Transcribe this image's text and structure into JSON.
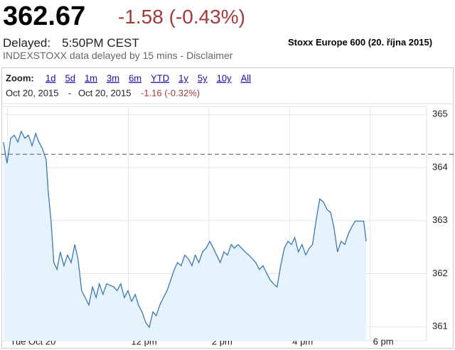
{
  "header": {
    "price": "362.67",
    "change": "-1.58 (-0.43%)",
    "delayed_label": "Delayed:",
    "delayed_time": "5:50PM CEST",
    "note": "INDEXSTOXX data delayed by 15 mins - Disclaimer",
    "caption": "Stoxx Europe 600 (20. října 2015)"
  },
  "zoom": {
    "label": "Zoom:",
    "options": [
      "1d",
      "5d",
      "1m",
      "3m",
      "6m",
      "YTD",
      "1y",
      "5y",
      "10y",
      "All"
    ]
  },
  "range": {
    "from": "Oct 20, 2015",
    "separator": "-",
    "to": "Oct 20, 2015",
    "change": "-1.16 (-0.32%)"
  },
  "chart_data": {
    "type": "area",
    "color": "#3a78b5",
    "fill": "#e6f3fc",
    "grid": true,
    "reference_line": 364.25,
    "x": [
      8.9,
      8.99,
      9.08,
      9.17,
      9.26,
      9.34,
      9.43,
      9.52,
      9.61,
      9.7,
      9.78,
      9.87,
      9.96,
      10.01,
      10.08,
      10.15,
      10.23,
      10.31,
      10.4,
      10.49,
      10.58,
      10.67,
      10.75,
      10.84,
      10.93,
      11.02,
      11.11,
      11.2,
      11.28,
      11.37,
      11.46,
      11.64,
      11.72,
      11.81,
      11.9,
      11.99,
      12.08,
      12.17,
      12.25,
      12.34,
      12.43,
      12.52,
      12.61,
      12.69,
      12.78,
      12.87,
      12.96,
      13.05,
      13.14,
      13.22,
      13.31,
      13.4,
      13.49,
      13.58,
      13.66,
      13.75,
      13.84,
      13.93,
      14.02,
      14.11,
      14.19,
      14.28,
      14.37,
      14.46,
      14.55,
      14.63,
      14.72,
      14.81,
      14.9,
      14.99,
      15.08,
      15.16,
      15.25,
      15.34,
      15.43,
      15.52,
      15.6,
      15.69,
      15.78,
      15.87,
      15.96,
      16.05,
      16.13,
      16.22,
      16.31,
      16.4,
      16.49,
      16.57,
      16.66,
      16.75,
      16.84,
      16.93,
      17.02,
      17.1,
      17.19,
      17.28,
      17.37,
      17.46,
      17.54,
      17.63,
      17.84,
      17.9
    ],
    "values": [
      364.48,
      364.08,
      364.55,
      364.61,
      364.48,
      364.68,
      364.55,
      364.61,
      364.41,
      364.64,
      364.48,
      364.35,
      364.15,
      363.55,
      363.01,
      362.21,
      362.08,
      362.41,
      362.15,
      362.35,
      362.21,
      362.55,
      362.28,
      361.68,
      361.55,
      361.41,
      361.75,
      361.55,
      361.81,
      361.61,
      361.81,
      361.75,
      361.68,
      361.81,
      361.55,
      361.68,
      361.48,
      361.61,
      361.41,
      361.28,
      361.08,
      360.99,
      361.28,
      361.21,
      361.41,
      361.55,
      361.68,
      361.88,
      362.08,
      362.21,
      362.15,
      362.35,
      362.28,
      362.15,
      362.35,
      362.21,
      362.41,
      362.48,
      362.61,
      362.48,
      362.35,
      362.21,
      362.41,
      362.35,
      362.55,
      362.48,
      362.55,
      362.48,
      362.41,
      362.35,
      362.28,
      362.21,
      362.08,
      362.15,
      362.01,
      361.88,
      361.81,
      361.75,
      362.15,
      362.48,
      362.61,
      362.55,
      362.68,
      362.41,
      362.55,
      362.35,
      362.48,
      362.55,
      363.01,
      363.41,
      363.35,
      363.21,
      363.15,
      362.88,
      362.41,
      362.61,
      362.55,
      362.75,
      362.88,
      362.99,
      362.99,
      362.61
    ],
    "xlim": [
      8.85,
      19.4
    ],
    "xticks": [
      {
        "value": 9,
        "label": "Tue Oct 20"
      },
      {
        "value": 12,
        "label": "12 pm"
      },
      {
        "value": 14,
        "label": "2 pm"
      },
      {
        "value": 16,
        "label": "4 pm"
      },
      {
        "value": 18,
        "label": "6 pm"
      }
    ],
    "ylim": [
      360.87,
      365.15
    ],
    "yticks": [
      361,
      362,
      363,
      364,
      365
    ]
  }
}
